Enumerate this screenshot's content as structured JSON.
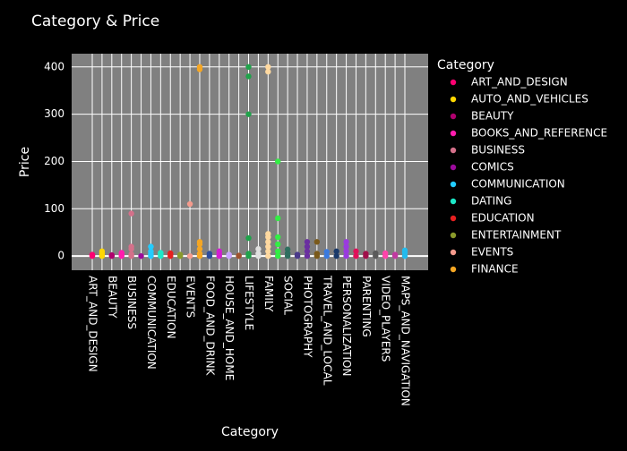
{
  "chart_data": {
    "type": "strip",
    "title": "Category & Price",
    "x_label": "Category",
    "y_label": "Price",
    "legend_title": "Category",
    "categories": [
      "ART_AND_DESIGN",
      null,
      "BEAUTY",
      null,
      "BUSINESS",
      null,
      "COMMUNICATION",
      null,
      "EDUCATION",
      null,
      "EVENTS",
      null,
      "FOOD_AND_DRINK",
      null,
      "HOUSE_AND_HOME",
      null,
      "LIFESTYLE",
      null,
      "FAMILY",
      null,
      "SOCIAL",
      null,
      "PHOTOGRAPHY",
      null,
      "TRAVEL_AND_LOCAL",
      null,
      "PERSONALIZATION",
      null,
      "PARENTING",
      null,
      "VIDEO_PLAYERS",
      null,
      "MAPS_AND_NAVIGATION"
    ],
    "ylim": [
      -30,
      428
    ],
    "yticks": [
      0,
      100,
      200,
      300,
      400
    ],
    "grid": true,
    "legend": "right",
    "series": [
      {
        "name": "ART_AND_DESIGN",
        "color": "#fd0071",
        "values": [
          0,
          1.99,
          2.99
        ]
      },
      {
        "name": "AUTO_AND_VEHICLES",
        "color": "#ffd700",
        "values": [
          0,
          4.99,
          9.99
        ]
      },
      {
        "name": "BEAUTY",
        "color": "#b0006e",
        "values": [
          0,
          1.99
        ]
      },
      {
        "name": "BOOKS_AND_REFERENCE",
        "color": "#ff1cae",
        "values": [
          0,
          2.99,
          4.99,
          6.99
        ]
      },
      {
        "name": "BUSINESS",
        "color": "#d4708a",
        "values": [
          0,
          3.99,
          14.99,
          19.99,
          89.99
        ]
      },
      {
        "name": "COMICS",
        "color": "#9c0a9c",
        "values": [
          0
        ]
      },
      {
        "name": "COMMUNICATION",
        "color": "#22ccff",
        "values": [
          0,
          3.99,
          9.99,
          19.99
        ]
      },
      {
        "name": "DATING",
        "color": "#1ce8c8",
        "values": [
          0,
          3.99,
          6.99
        ]
      },
      {
        "name": "EDUCATION",
        "color": "#e62020",
        "values": [
          0,
          3.99,
          5.99
        ]
      },
      {
        "name": "ENTERTAINMENT",
        "color": "#8a9a2b",
        "values": [
          0,
          2.99
        ]
      },
      {
        "name": "EVENTS",
        "color": "#f59a8c",
        "values": [
          0,
          109.99
        ]
      },
      {
        "name": "FINANCE",
        "color": "#f5a623",
        "values": [
          0,
          4.99,
          14.99,
          24.99,
          29.99,
          394.99,
          399.99
        ]
      },
      {
        "name": null,
        "color": "#2e4c9c",
        "values": [
          0,
          4.99
        ]
      },
      {
        "name": null,
        "color": "#d21cd2",
        "values": [
          0,
          3.99,
          9.99
        ]
      },
      {
        "name": null,
        "color": "#c8a2ff",
        "values": [
          0,
          2.99
        ]
      },
      {
        "name": null,
        "color": "#a0522d",
        "values": [
          0,
          0.99
        ]
      },
      {
        "name": null,
        "color": "#1fa34a",
        "values": [
          0,
          4.99,
          37.99,
          299.99,
          379.99,
          399.99
        ]
      },
      {
        "name": null,
        "color": "#e0e0e0",
        "values": [
          0,
          4.99,
          14.99
        ]
      },
      {
        "name": null,
        "color": "#ffd9a0",
        "values": [
          0,
          9.99,
          19.99,
          29.99,
          39.99,
          46.99,
          389.99,
          399.99
        ]
      },
      {
        "name": null,
        "color": "#33ee44",
        "values": [
          0,
          9.99,
          24.99,
          39.99,
          79.99,
          199.99
        ]
      },
      {
        "name": null,
        "color": "#2f6f5f",
        "values": [
          0,
          5.99,
          13.99
        ]
      },
      {
        "name": null,
        "color": "#4a3a8a",
        "values": [
          0,
          2.99
        ]
      },
      {
        "name": null,
        "color": "#6a2fa0",
        "values": [
          0,
          9.99,
          19.99,
          29.99
        ]
      },
      {
        "name": null,
        "color": "#7a5a1a",
        "values": [
          0,
          4.99,
          29.99
        ]
      },
      {
        "name": null,
        "color": "#3a7adf",
        "values": [
          0,
          8.99
        ]
      },
      {
        "name": null,
        "color": "#1a3a6a",
        "values": [
          0,
          9.99
        ]
      },
      {
        "name": null,
        "color": "#9a3adf",
        "values": [
          0,
          9.99,
          19.99,
          29.99
        ]
      },
      {
        "name": null,
        "color": "#e0105a",
        "values": [
          0,
          9.99
        ]
      },
      {
        "name": null,
        "color": "#a0104a",
        "values": [
          0,
          4.99
        ]
      },
      {
        "name": null,
        "color": "#5a5a5a",
        "values": [
          0,
          5.99
        ]
      },
      {
        "name": null,
        "color": "#ff44aa",
        "values": [
          0,
          5.99
        ]
      },
      {
        "name": null,
        "color": "#c03aa0",
        "values": [
          0,
          2.99
        ]
      },
      {
        "name": null,
        "color": "#22bbee",
        "values": [
          0,
          6.99,
          11.99
        ]
      }
    ]
  }
}
